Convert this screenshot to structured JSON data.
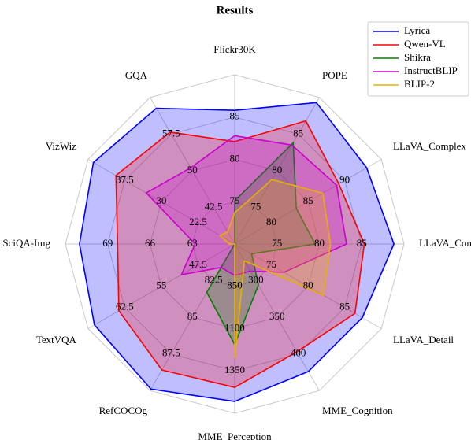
{
  "chart_data": {
    "type": "radar",
    "title": "Results",
    "categories": [
      "Flickr30K",
      "POPE",
      "LLaVA_Complex",
      "LLaVA_Conv",
      "LLaVA_Detail",
      "MME_Cognition",
      "MME_Perception",
      "RefCOCOg",
      "TextVQA",
      "SciQA-Img",
      "VizWiz",
      "GQA"
    ],
    "axes": [
      {
        "lim": [
          70,
          90
        ],
        "ticks": [
          75,
          80,
          85
        ]
      },
      {
        "lim": [
          70,
          90
        ],
        "ticks": [
          75,
          80,
          85
        ]
      },
      {
        "lim": [
          75,
          95
        ],
        "ticks": [
          80,
          85,
          90
        ]
      },
      {
        "lim": [
          70,
          90
        ],
        "ticks": [
          75,
          80,
          85
        ]
      },
      {
        "lim": [
          70,
          90
        ],
        "ticks": [
          75,
          80,
          85
        ]
      },
      {
        "lim": [
          250,
          450
        ],
        "ticks": [
          300,
          350,
          400
        ]
      },
      {
        "lim": [
          600,
          1600
        ],
        "ticks": [
          850,
          1100,
          1350
        ]
      },
      {
        "lim": [
          80,
          90
        ],
        "ticks": [
          82.5,
          85,
          87.5
        ]
      },
      {
        "lim": [
          40,
          70
        ],
        "ticks": [
          47.5,
          55,
          62.5
        ]
      },
      {
        "lim": [
          60,
          72
        ],
        "ticks": [
          63,
          66,
          69
        ]
      },
      {
        "lim": [
          15,
          45
        ],
        "ticks": [
          22.5,
          30,
          37.5
        ]
      },
      {
        "lim": [
          35,
          65
        ],
        "ticks": [
          42.5,
          50,
          57.5
        ]
      }
    ],
    "series": [
      {
        "name": "Lyrica",
        "color": "#0000ff",
        "values": [
          85.8,
          89.3,
          93,
          88.8,
          87.4,
          424,
          1530,
          89.9,
          68.7,
          71,
          43.9,
          62.8
        ]
      },
      {
        "name": "Qwen-VL",
        "color": "#ff0000",
        "values": [
          82.1,
          86.8,
          89.2,
          85.3,
          86.4,
          397,
          1447,
          88.6,
          63.7,
          68.3,
          39.3,
          57.9
        ]
      },
      {
        "name": "Shikra",
        "color": "#008000",
        "values": [
          75.1,
          83.8,
          83.4,
          79.5,
          72.3,
          306,
          1195,
          83.3,
          40,
          60,
          15,
          35
        ]
      },
      {
        "name": "InstructBLIP",
        "color": "#cc00cc",
        "values": [
          82.8,
          83.5,
          88.9,
          83.2,
          76.7,
          287,
          786,
          81.6,
          50.9,
          62.8,
          33.1,
          50.6
        ]
      },
      {
        "name": "BLIP-2",
        "color": "#e6b000",
        "values": [
          73.7,
          78.8,
          87,
          81.3,
          82.1,
          273,
          1274,
          80,
          40,
          60.4,
          18,
          37.5
        ]
      }
    ],
    "legend": "upper right"
  }
}
